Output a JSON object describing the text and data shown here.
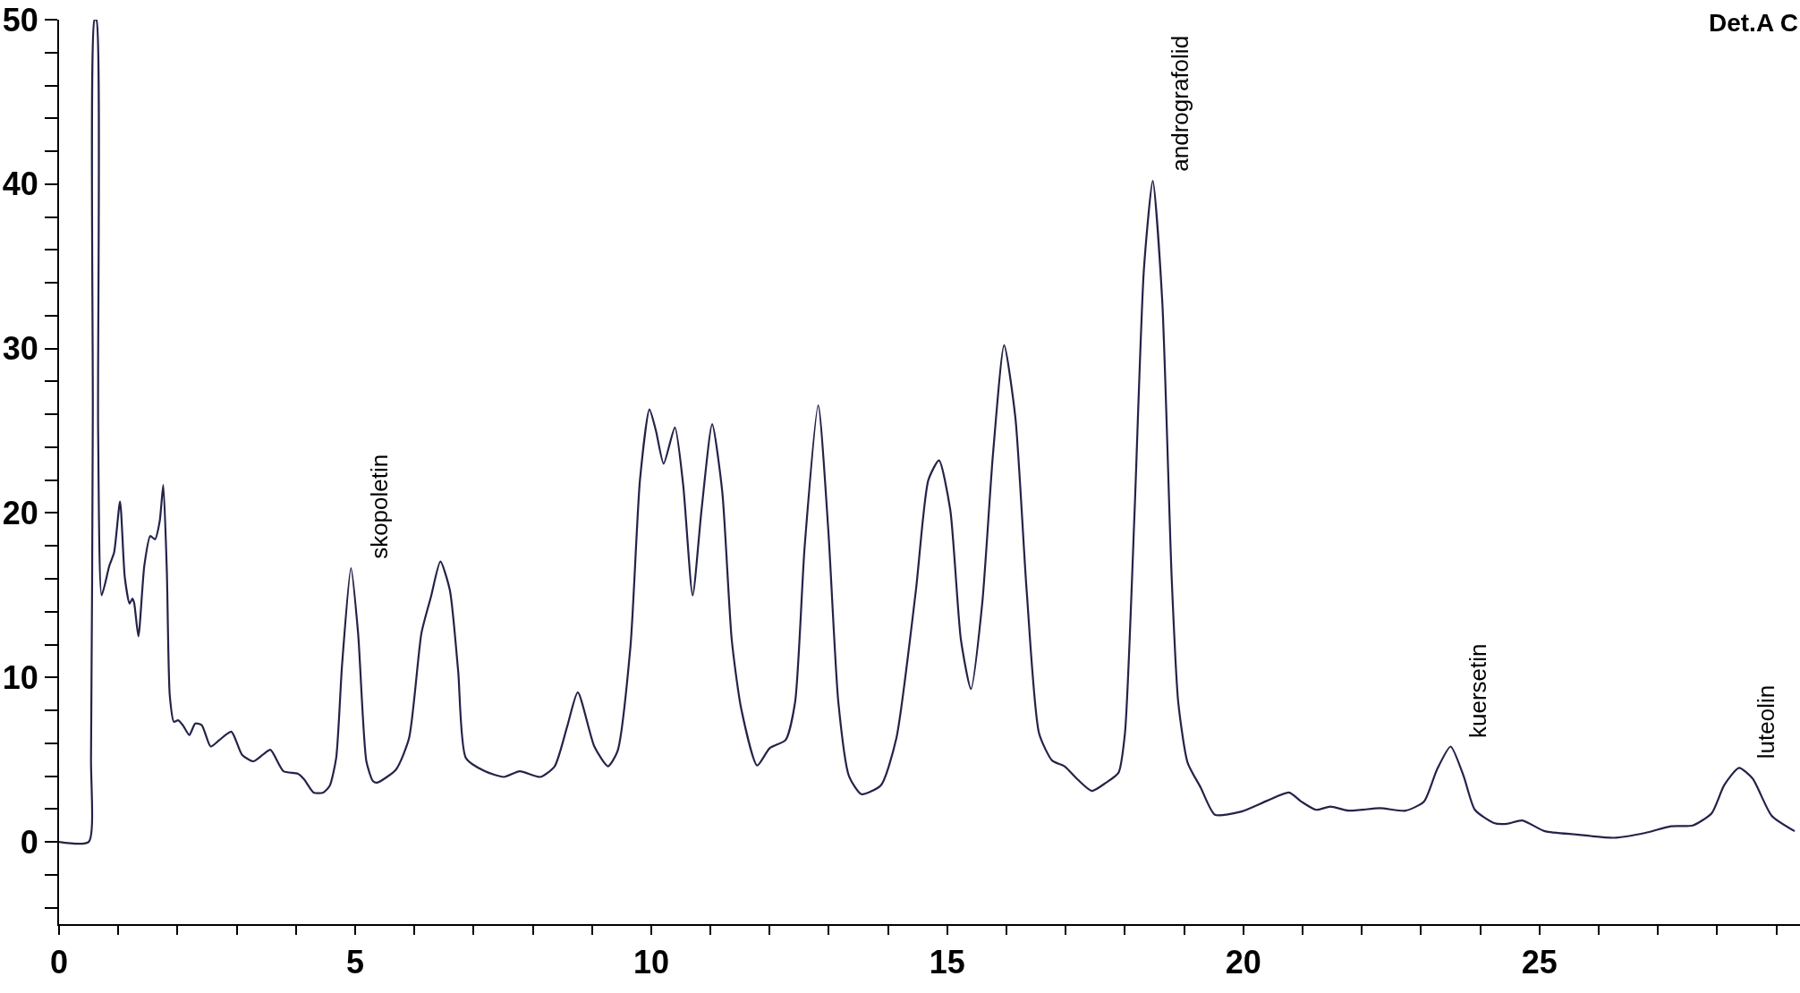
{
  "chart_data": {
    "type": "line",
    "color": "#23234a",
    "x": [
      0,
      0.5,
      0.54,
      0.57,
      0.6,
      0.63,
      0.66,
      0.72,
      0.85,
      0.93,
      1.03,
      1.11,
      1.19,
      1.24,
      1.27,
      1.34,
      1.44,
      1.54,
      1.62,
      1.7,
      1.76,
      1.82,
      1.87,
      1.94,
      2.01,
      2.09,
      2.2,
      2.3,
      2.41,
      2.56,
      2.71,
      2.91,
      3.09,
      3.28,
      3.44,
      3.57,
      3.79,
      4.03,
      4.14,
      4.3,
      4.46,
      4.57,
      4.68,
      4.78,
      4.93,
      5.05,
      5.19,
      5.3,
      5.37,
      5.69,
      5.91,
      6.12,
      6.28,
      6.44,
      6.6,
      6.74,
      6.87,
      7.19,
      7.51,
      7.78,
      8.13,
      8.37,
      8.58,
      8.76,
      9.04,
      9.27,
      9.43,
      9.65,
      9.81,
      9.97,
      10.08,
      10.21,
      10.4,
      10.54,
      10.7,
      10.85,
      11.03,
      11.2,
      11.36,
      11.52,
      11.79,
      12.0,
      12.27,
      12.43,
      12.59,
      12.82,
      12.99,
      13.16,
      13.34,
      13.55,
      13.88,
      14.14,
      14.47,
      14.68,
      14.86,
      15.05,
      15.23,
      15.4,
      15.59,
      15.77,
      15.96,
      16.15,
      16.34,
      16.55,
      16.77,
      16.98,
      17.2,
      17.44,
      17.68,
      17.89,
      18.0,
      18.16,
      18.32,
      18.47,
      18.63,
      18.79,
      18.9,
      19.06,
      19.28,
      19.52,
      19.97,
      20.4,
      20.77,
      20.98,
      21.23,
      21.47,
      21.78,
      22.31,
      22.74,
      23.05,
      23.27,
      23.5,
      23.72,
      23.91,
      24.23,
      24.45,
      24.71,
      25.09,
      25.62,
      26.26,
      26.79,
      27.22,
      27.59,
      27.91,
      28.12,
      28.37,
      28.6,
      28.92,
      29.31
    ],
    "values": [
      0,
      0,
      5.1,
      25.9,
      50,
      50,
      25,
      15.0,
      16.8,
      17.6,
      20.7,
      16.1,
      14.5,
      14.8,
      14.5,
      12.5,
      16.8,
      18.6,
      18.4,
      19.5,
      21.7,
      16.5,
      8.9,
      7.3,
      7.4,
      7.1,
      6.5,
      7.2,
      7.1,
      5.8,
      6.2,
      6.7,
      5.3,
      4.9,
      5.3,
      5.6,
      4.3,
      4.15,
      3.8,
      3.0,
      3.0,
      3.4,
      5.1,
      10.8,
      16.65,
      12.7,
      4.9,
      3.7,
      3.6,
      4.4,
      6.3,
      12.7,
      14.9,
      17.05,
      15.3,
      10.4,
      5.1,
      4.3,
      3.95,
      4.3,
      3.95,
      4.6,
      7.0,
      9.1,
      5.8,
      4.6,
      5.5,
      11.9,
      22.0,
      26.3,
      25.0,
      23.0,
      25.2,
      21.7,
      15.0,
      20.2,
      25.4,
      21.3,
      12.3,
      8.1,
      4.65,
      5.7,
      6.2,
      8.5,
      17.9,
      26.55,
      19.0,
      8.5,
      4.0,
      2.9,
      3.45,
      6.3,
      15.3,
      22.0,
      23.2,
      20.2,
      12.3,
      9.3,
      14.5,
      23.5,
      30.2,
      25.8,
      15.3,
      6.6,
      4.95,
      4.6,
      3.8,
      3.1,
      3.6,
      4.2,
      6.6,
      19.8,
      34.8,
      40.2,
      32.9,
      16.0,
      8.5,
      4.8,
      3.3,
      1.65,
      1.85,
      2.5,
      3.0,
      2.45,
      1.95,
      2.15,
      1.9,
      2.05,
      1.9,
      2.45,
      4.4,
      5.8,
      4.0,
      1.95,
      1.15,
      1.1,
      1.3,
      0.65,
      0.45,
      0.25,
      0.55,
      0.95,
      1.0,
      1.75,
      3.45,
      4.5,
      3.85,
      1.6,
      0.65
    ],
    "xlim": [
      0,
      29.4
    ],
    "ylim": [
      -5,
      50
    ],
    "xticks": [
      0,
      {
        "value": 1,
        "label": null
      },
      {
        "value": 2,
        "label": null
      },
      {
        "value": 3,
        "label": null
      },
      {
        "value": 4,
        "label": null
      },
      5,
      {
        "value": 6,
        "label": null
      },
      {
        "value": 7,
        "label": null
      },
      {
        "value": 8,
        "label": null
      },
      {
        "value": 9,
        "label": null
      },
      10,
      {
        "value": 11,
        "label": null
      },
      {
        "value": 12,
        "label": null
      },
      {
        "value": 13,
        "label": null
      },
      {
        "value": 14,
        "label": null
      },
      15,
      {
        "value": 16,
        "label": null
      },
      {
        "value": 17,
        "label": null
      },
      {
        "value": 18,
        "label": null
      },
      {
        "value": 19,
        "label": null
      },
      20,
      {
        "value": 21,
        "label": null
      },
      {
        "value": 22,
        "label": null
      },
      {
        "value": 23,
        "label": null
      },
      {
        "value": 24,
        "label": null
      },
      25,
      {
        "value": 26,
        "label": null
      },
      {
        "value": 27,
        "label": null
      },
      {
        "value": 28,
        "label": null
      },
      {
        "value": 29,
        "label": null
      }
    ],
    "yticks": [
      {
        "value": -4,
        "label": null
      },
      {
        "value": -2,
        "label": null
      },
      0,
      {
        "value": 2,
        "label": null
      },
      {
        "value": 4,
        "label": null
      },
      {
        "value": 6,
        "label": null
      },
      {
        "value": 8,
        "label": null
      },
      10,
      {
        "value": 12,
        "label": null
      },
      {
        "value": 14,
        "label": null
      },
      {
        "value": 16,
        "label": null
      },
      {
        "value": 18,
        "label": null
      },
      20,
      {
        "value": 22,
        "label": null
      },
      {
        "value": 24,
        "label": null
      },
      {
        "value": 26,
        "label": null
      },
      {
        "value": 28,
        "label": null
      },
      30,
      {
        "value": 32,
        "label": null
      },
      {
        "value": 34,
        "label": null
      },
      {
        "value": 36,
        "label": null
      },
      {
        "value": 38,
        "label": null
      },
      40,
      {
        "value": 42,
        "label": null
      },
      {
        "value": 44,
        "label": null
      },
      {
        "value": 46,
        "label": null
      },
      {
        "value": 48,
        "label": null
      },
      50
    ],
    "annotations": [
      {
        "text": "skopoletin",
        "x": 4.93,
        "y": 16.65
      },
      {
        "text": "andrografolid",
        "x": 18.47,
        "y": 40.2
      },
      {
        "text": "kuersetin",
        "x": 23.5,
        "y": 5.8
      },
      {
        "text": "luteolin",
        "x": 28.37,
        "y": 4.5
      },
      "Det.A C"
    ],
    "marker": "none",
    "line_style": "solid"
  }
}
